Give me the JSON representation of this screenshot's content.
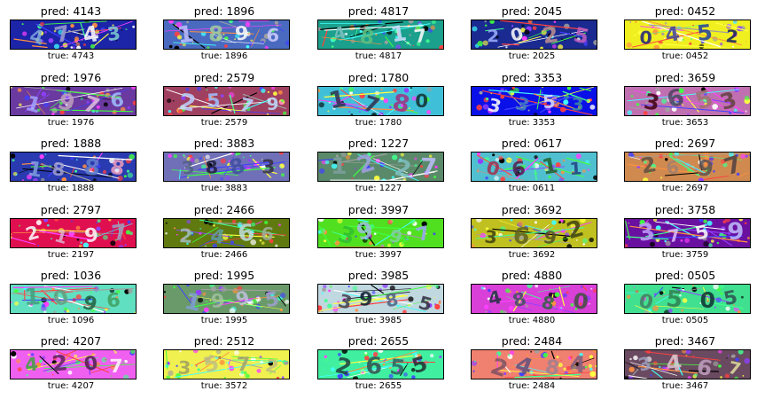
{
  "pred_prefix": "pred: ",
  "true_prefix": "true: ",
  "cells": [
    {
      "pred": "4143",
      "true": "4743",
      "bg": "#1c24a8",
      "fg": [
        "#7fa8e0",
        "#a0a0d0",
        "#ffffff",
        "#7fd0d0"
      ]
    },
    {
      "pred": "1896",
      "true": "1896",
      "bg": "#4a6ac0",
      "fg": [
        "#c0c0ff",
        "#a0d0a0",
        "#ffffff",
        "#d0d0ff"
      ]
    },
    {
      "pred": "4817",
      "true": "4817",
      "bg": "#1aa08c",
      "fg": [
        "#80c0c0",
        "#60c080",
        "#d0e0ff",
        "#ffffff"
      ]
    },
    {
      "pred": "2045",
      "true": "2025",
      "bg": "#1a2a90",
      "fg": [
        "#a0b0ff",
        "#ffffff",
        "#c09090",
        "#c060c0"
      ]
    },
    {
      "pred": "0452",
      "true": "0452",
      "bg": "#f0f020",
      "fg": [
        "#202080",
        "#4040a0",
        "#2040a0",
        "#102060"
      ]
    },
    {
      "pred": "1976",
      "true": "1976",
      "bg": "#6a3aa0",
      "fg": [
        "#a0a0ff",
        "#c0a0c0",
        "#e0c0e0",
        "#a0c0ff"
      ]
    },
    {
      "pred": "2579",
      "true": "2579",
      "bg": "#a04060",
      "fg": [
        "#c0d0ff",
        "#a0c0ff",
        "#c0d0ff",
        "#c0e0ff"
      ]
    },
    {
      "pred": "1780",
      "true": "1780",
      "bg": "#40c0d8",
      "fg": [
        "#303050",
        "#303050",
        "#a03080",
        "#103030"
      ]
    },
    {
      "pred": "3353",
      "true": "3353",
      "bg": "#0a10e8",
      "fg": [
        "#ffffff",
        "#4080c0",
        "#e0e0ff",
        "#4090a0"
      ]
    },
    {
      "pred": "3659",
      "true": "3653",
      "bg": "#c070b0",
      "fg": [
        "#400010",
        "#504060",
        "#a07070",
        "#604040"
      ]
    },
    {
      "pred": "1888",
      "true": "1888",
      "bg": "#2a3ab0",
      "fg": [
        "#80a0e0",
        "#a0a0d0",
        "#6080d0",
        "#f0a0c0"
      ]
    },
    {
      "pred": "3883",
      "true": "3883",
      "bg": "#7070b8",
      "fg": [
        "#506080",
        "#202040",
        "#4050a0",
        "#303040"
      ]
    },
    {
      "pred": "1227",
      "true": "1227",
      "bg": "#5a8a6a",
      "fg": [
        "#80a0a0",
        "#a0a0e0",
        "#80c0c0",
        "#c0c0ff"
      ]
    },
    {
      "pred": "0617",
      "true": "0611",
      "bg": "#50c0d0",
      "fg": [
        "#a03050",
        "#502050",
        "#206030",
        "#204080"
      ]
    },
    {
      "pred": "2697",
      "true": "2697",
      "bg": "#d08a50",
      "fg": [
        "#605040",
        "#a08070",
        "#605050",
        "#504040"
      ]
    },
    {
      "pred": "2797",
      "true": "2197",
      "bg": "#e01050",
      "fg": [
        "#ffffff",
        "#e0b0d0",
        "#ffffff",
        "#a0a0c0"
      ]
    },
    {
      "pred": "2466",
      "true": "2466",
      "bg": "#607a10",
      "fg": [
        "#a0c0c0",
        "#60a0a0",
        "#c0e0e0",
        "#a0b0a0"
      ]
    },
    {
      "pred": "3997",
      "true": "3997",
      "bg": "#50e020",
      "fg": [
        "#30c030",
        "#a0c0e0",
        "#80d0a0",
        "#a0a0ff"
      ]
    },
    {
      "pred": "3692",
      "true": "3692",
      "bg": "#c0c020",
      "fg": [
        "#404010",
        "#606020",
        "#505020",
        "#404010"
      ]
    },
    {
      "pred": "3758",
      "true": "3759",
      "bg": "#6a10a0",
      "fg": [
        "#c0a0ff",
        "#e0c0ff",
        "#ffffff",
        "#c0c0ff"
      ]
    },
    {
      "pred": "1036",
      "true": "1096",
      "bg": "#60e0c0",
      "fg": [
        "#40a080",
        "#60a080",
        "#206040",
        "#40a060"
      ]
    },
    {
      "pred": "1995",
      "true": "1995",
      "bg": "#6a9a6a",
      "fg": [
        "#80a0d0",
        "#a0c0a0",
        "#c0c0e0",
        "#a0a0d0"
      ]
    },
    {
      "pred": "3985",
      "true": "3985",
      "bg": "#c0d8e0",
      "fg": [
        "#404050",
        "#102030",
        "#506080",
        "#303040"
      ]
    },
    {
      "pred": "4880",
      "true": "4880",
      "bg": "#d840d8",
      "fg": [
        "#203040",
        "#405060",
        "#306040",
        "#405040"
      ]
    },
    {
      "pred": "0505",
      "true": "0505",
      "bg": "#40e090",
      "fg": [
        "#408060",
        "#308050",
        "#103030",
        "#305050"
      ]
    },
    {
      "pred": "4207",
      "true": "4207",
      "bg": "#f060f0",
      "fg": [
        "#40a040",
        "#602060",
        "#502050",
        "#ffffff"
      ]
    },
    {
      "pred": "2512",
      "true": "3572",
      "bg": "#f0f050",
      "fg": [
        "#a0a060",
        "#c0c080",
        "#a0a070",
        "#c0c080"
      ]
    },
    {
      "pred": "2655",
      "true": "2655",
      "bg": "#40f0a0",
      "fg": [
        "#204040",
        "#305050",
        "#306060",
        "#203030"
      ]
    },
    {
      "pred": "2484",
      "true": "2484",
      "bg": "#f08070",
      "fg": [
        "#805060",
        "#605080",
        "#a08090",
        "#806080"
      ]
    },
    {
      "pred": "3467",
      "true": "3467",
      "bg": "#6a4a60",
      "fg": [
        "#a0a0c0",
        "#e0c0d0",
        "#c0a0c0",
        "#e0e0a0"
      ]
    }
  ]
}
